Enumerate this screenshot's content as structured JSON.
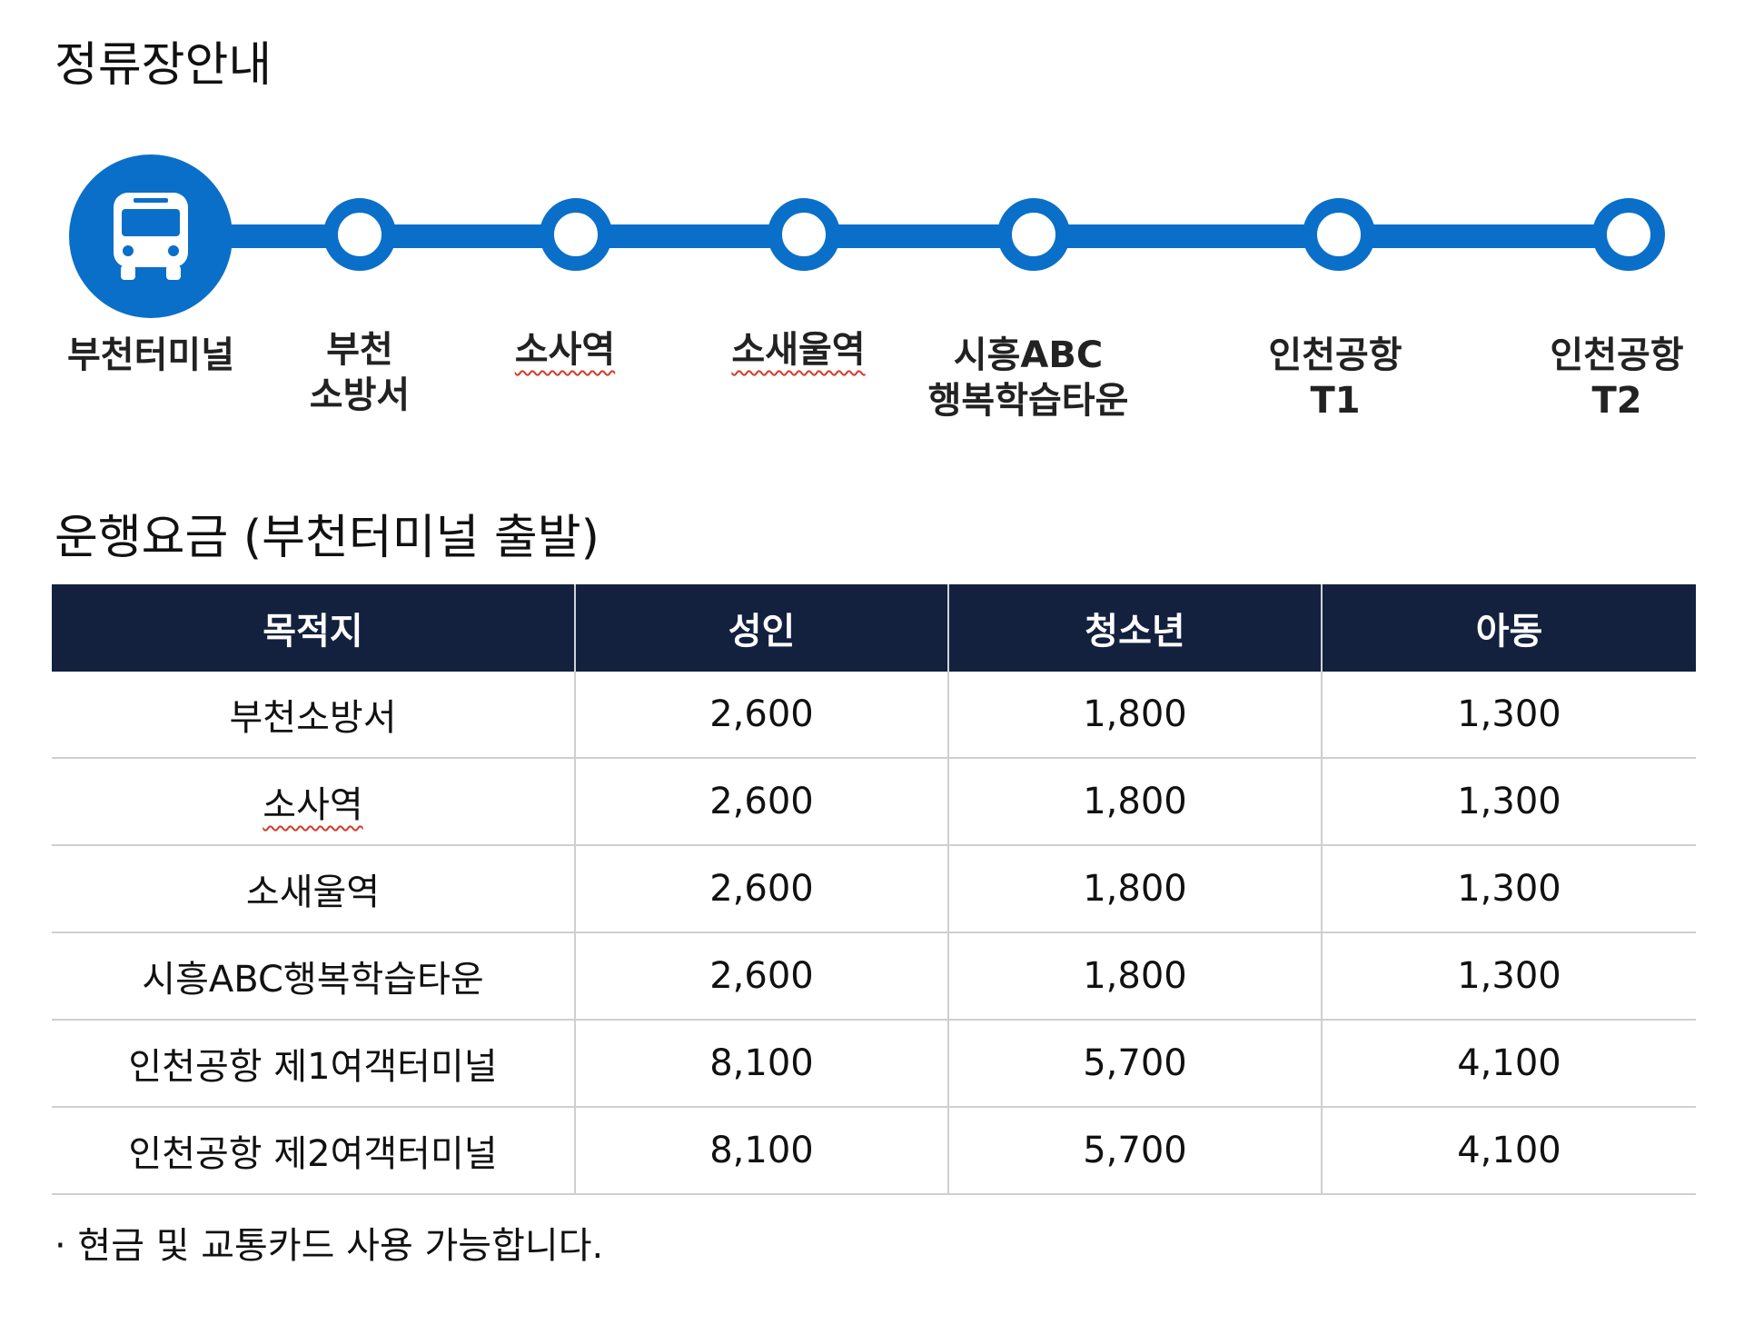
{
  "stops_section": {
    "title": "정류장안내",
    "accent_color": "#0a6fc9",
    "origin_icon": "bus-icon",
    "stops": [
      {
        "lines": [
          "부천터미널"
        ]
      },
      {
        "lines": [
          "부천",
          "소방서"
        ]
      },
      {
        "lines": [
          "소사역"
        ]
      },
      {
        "lines": [
          "소새울역"
        ]
      },
      {
        "lines": [
          "시흥ABC",
          "행복학습타운"
        ]
      },
      {
        "lines": [
          "인천공항",
          "T1"
        ]
      },
      {
        "lines": [
          "인천공항",
          "T2"
        ]
      }
    ]
  },
  "fare_section": {
    "title": "운행요금 (부천터미널 출발)",
    "header_color": "#13213f",
    "columns": [
      "목적지",
      "성인",
      "청소년",
      "아동"
    ],
    "rows": [
      [
        "부천소방서",
        "2,600",
        "1,800",
        "1,300"
      ],
      [
        "소사역",
        "2,600",
        "1,800",
        "1,300"
      ],
      [
        "소새울역",
        "2,600",
        "1,800",
        "1,300"
      ],
      [
        "시흥ABC행복학습타운",
        "2,600",
        "1,800",
        "1,300"
      ],
      [
        "인천공항 제1여객터미널",
        "8,100",
        "5,700",
        "4,100"
      ],
      [
        "인천공항 제2여객터미널",
        "8,100",
        "5,700",
        "4,100"
      ]
    ],
    "note": "· 현금 및 교통카드 사용 가능합니다."
  }
}
